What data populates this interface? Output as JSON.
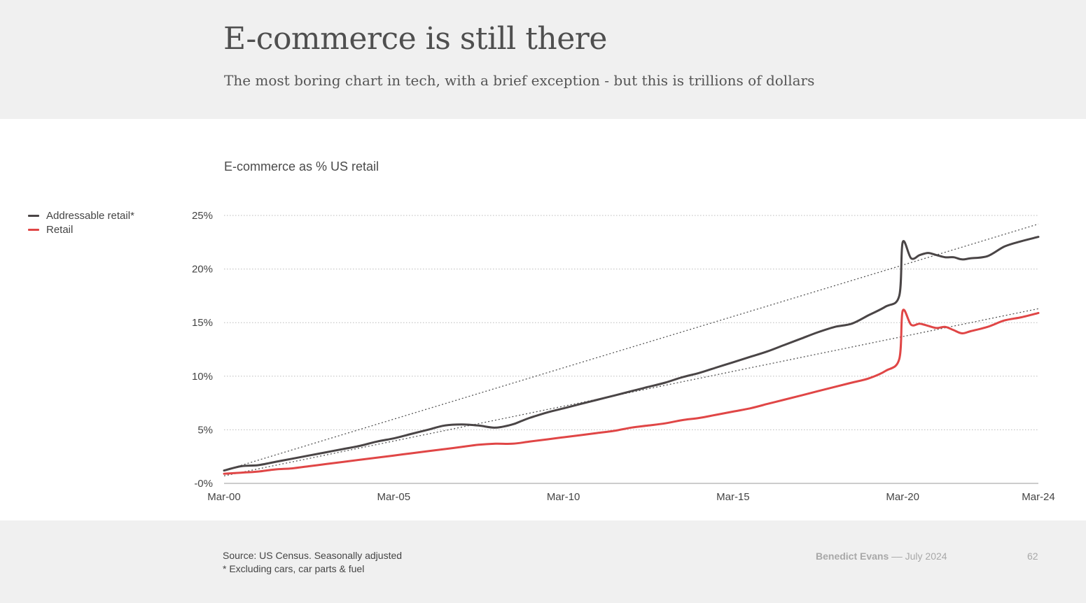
{
  "slide": {
    "title": "E-commerce is still there",
    "subtitle": "The most boring chart in tech, with a brief exception - but this is trillions of dollars",
    "source_line1": "Source: US Census. Seasonally adjusted",
    "source_line2": "* Excluding cars, car parts & fuel",
    "author": "Benedict Evans",
    "separator": "––",
    "date": "July 2024",
    "page_number": "62"
  },
  "colors": {
    "addressable": "#4a4546",
    "retail": "#e04646",
    "trend": "#555555",
    "grid": "#bbbbbb",
    "axis": "#999999"
  },
  "chart_data": {
    "type": "line",
    "title": "E-commerce as % US retail",
    "xlabel": "",
    "ylabel": "",
    "x_ticks": [
      "Mar-00",
      "Mar-05",
      "Mar-10",
      "Mar-15",
      "Mar-20",
      "Mar-24"
    ],
    "y_ticks": [
      "-0%",
      "5%",
      "10%",
      "15%",
      "20%",
      "25%"
    ],
    "ylim": [
      0,
      25
    ],
    "xlim": [
      2000.0,
      2024.0
    ],
    "grid": true,
    "legend_position": "left",
    "series": [
      {
        "name": "Addressable retail*",
        "color": "#4a4546",
        "x": [
          2000.0,
          2000.5,
          2001.0,
          2001.5,
          2002.0,
          2002.5,
          2003.0,
          2003.5,
          2004.0,
          2004.5,
          2005.0,
          2005.5,
          2006.0,
          2006.5,
          2007.0,
          2007.5,
          2008.0,
          2008.5,
          2008.75,
          2009.0,
          2009.5,
          2010.0,
          2010.5,
          2011.0,
          2011.5,
          2012.0,
          2012.5,
          2013.0,
          2013.5,
          2014.0,
          2014.5,
          2015.0,
          2015.5,
          2016.0,
          2016.5,
          2017.0,
          2017.5,
          2018.0,
          2018.5,
          2019.0,
          2019.5,
          2019.9,
          2020.0,
          2020.25,
          2020.5,
          2020.75,
          2021.0,
          2021.25,
          2021.5,
          2021.75,
          2022.0,
          2022.5,
          2023.0,
          2023.5,
          2024.0
        ],
        "values": [
          1.2,
          1.6,
          1.7,
          2.0,
          2.3,
          2.6,
          2.9,
          3.2,
          3.5,
          3.9,
          4.2,
          4.6,
          5.0,
          5.4,
          5.5,
          5.4,
          5.2,
          5.5,
          5.8,
          6.1,
          6.6,
          7.0,
          7.4,
          7.8,
          8.2,
          8.6,
          9.0,
          9.4,
          9.9,
          10.3,
          10.8,
          11.3,
          11.8,
          12.3,
          12.9,
          13.5,
          14.1,
          14.6,
          14.9,
          15.7,
          16.5,
          17.5,
          22.5,
          21.0,
          21.3,
          21.5,
          21.3,
          21.1,
          21.1,
          20.9,
          21.0,
          21.2,
          22.1,
          22.6,
          23.0
        ]
      },
      {
        "name": "Retail",
        "color": "#e04646",
        "x": [
          2000.0,
          2000.5,
          2001.0,
          2001.5,
          2002.0,
          2002.5,
          2003.0,
          2003.5,
          2004.0,
          2004.5,
          2005.0,
          2005.5,
          2006.0,
          2006.5,
          2007.0,
          2007.5,
          2008.0,
          2008.5,
          2009.0,
          2009.5,
          2010.0,
          2010.5,
          2011.0,
          2011.5,
          2012.0,
          2012.5,
          2013.0,
          2013.5,
          2014.0,
          2014.5,
          2015.0,
          2015.5,
          2016.0,
          2016.5,
          2017.0,
          2017.5,
          2018.0,
          2018.5,
          2019.0,
          2019.5,
          2019.9,
          2020.0,
          2020.25,
          2020.5,
          2020.75,
          2021.0,
          2021.25,
          2021.5,
          2021.75,
          2022.0,
          2022.5,
          2023.0,
          2023.5,
          2024.0
        ],
        "values": [
          0.9,
          1.0,
          1.1,
          1.3,
          1.4,
          1.6,
          1.8,
          2.0,
          2.2,
          2.4,
          2.6,
          2.8,
          3.0,
          3.2,
          3.4,
          3.6,
          3.7,
          3.7,
          3.9,
          4.1,
          4.3,
          4.5,
          4.7,
          4.9,
          5.2,
          5.4,
          5.6,
          5.9,
          6.1,
          6.4,
          6.7,
          7.0,
          7.4,
          7.8,
          8.2,
          8.6,
          9.0,
          9.4,
          9.8,
          10.5,
          11.6,
          16.1,
          14.8,
          14.9,
          14.7,
          14.5,
          14.6,
          14.3,
          14.0,
          14.2,
          14.6,
          15.2,
          15.5,
          15.9
        ]
      }
    ],
    "trend_lines": [
      {
        "series": "Addressable retail*",
        "x": [
          2000.0,
          2024.0
        ],
        "values": [
          1.2,
          24.2
        ]
      },
      {
        "series": "Retail",
        "x": [
          2000.0,
          2024.0
        ],
        "values": [
          0.7,
          16.3
        ]
      }
    ]
  }
}
